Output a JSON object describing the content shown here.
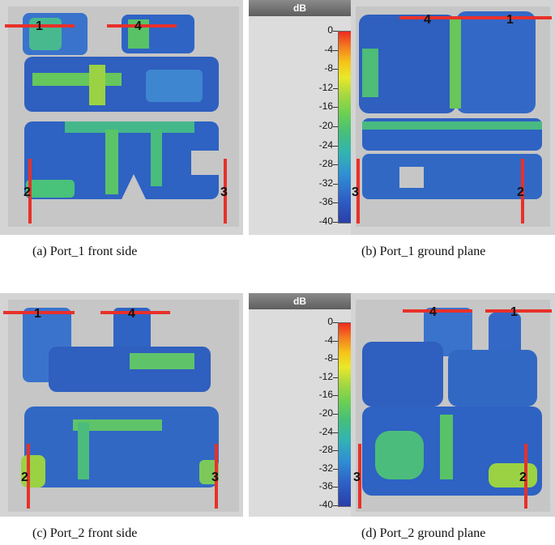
{
  "colorbar": {
    "title": "dB",
    "ticks": [
      "0",
      "-4",
      "-8",
      "-12",
      "-16",
      "-20",
      "-24",
      "-28",
      "-32",
      "-36",
      "-40"
    ]
  },
  "panels": [
    {
      "id": "a",
      "caption": "(a)   Port_1 front side",
      "ports": [
        "1",
        "4",
        "2",
        "3"
      ]
    },
    {
      "id": "b",
      "caption": "(b) Port_1 ground plane",
      "ports": [
        "4",
        "1",
        "3",
        "2"
      ]
    },
    {
      "id": "c",
      "caption": "(c) Port_2 front side",
      "ports": [
        "1",
        "4",
        "2",
        "3"
      ]
    },
    {
      "id": "d",
      "caption": "(d) Port_2 ground plane",
      "ports": [
        "4",
        "1",
        "3",
        "2"
      ]
    }
  ],
  "colors": {
    "port_marker": "#e8302a",
    "field_low": "#2d5fc7",
    "field_mid": "#45bf7a",
    "field_high": "#e9e92a",
    "background": "#c9c9c9"
  }
}
